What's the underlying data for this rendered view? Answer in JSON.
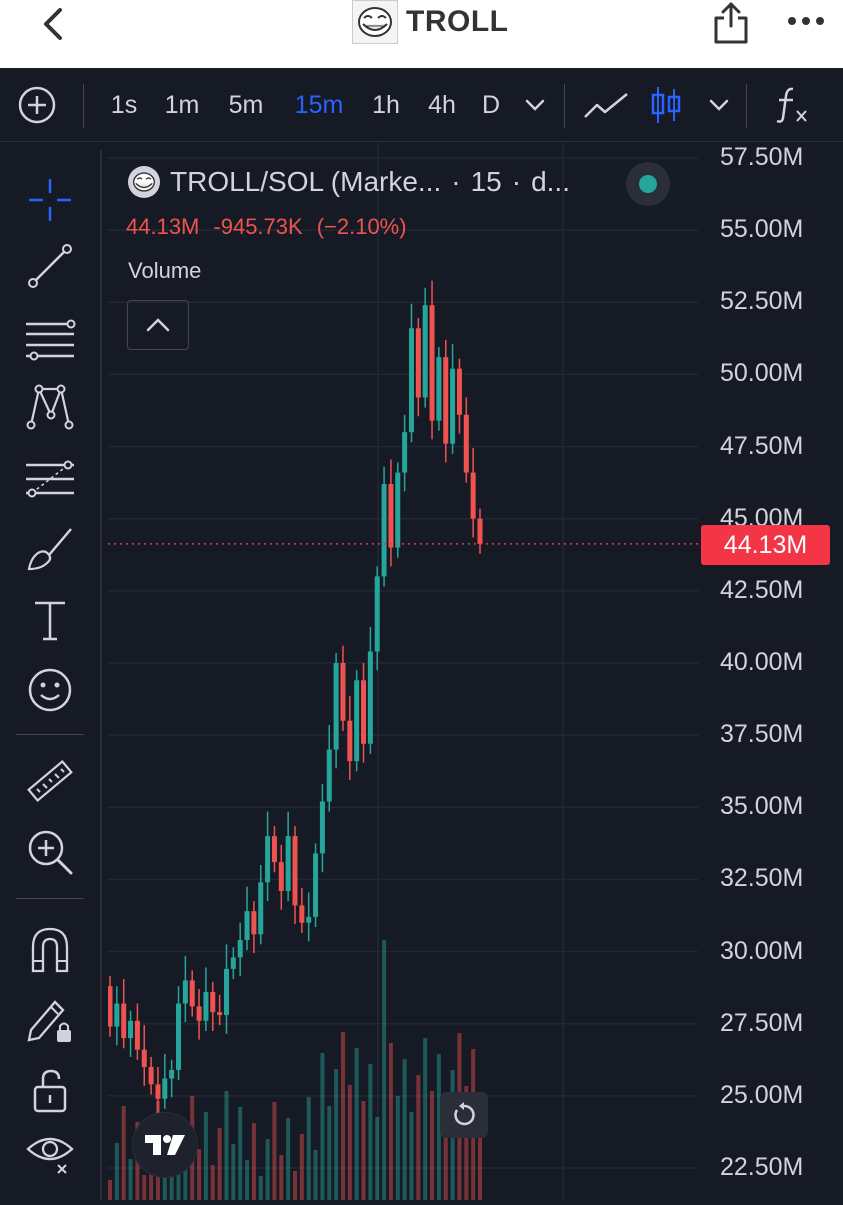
{
  "header": {
    "title": "TROLL"
  },
  "toolbar": {
    "intervals": [
      "1s",
      "1m",
      "5m",
      "15m",
      "1h",
      "4h",
      "D"
    ],
    "active_interval": "15m"
  },
  "legend": {
    "symbol": "TROLL/SOL (Marke...",
    "interval": "15",
    "suffix": "d...",
    "price": "44.13M",
    "change": "-945.73K",
    "change_pct": "(−2.10%)",
    "volume_label": "Volume"
  },
  "colors": {
    "up": "#26a69a",
    "down": "#ef5350",
    "accent": "#2962ff",
    "price_tag": "#f23645",
    "background": "#161a25"
  },
  "chart_data": {
    "type": "candlestick",
    "y_axis_labels": [
      "57.50M",
      "55.00M",
      "52.50M",
      "50.00M",
      "47.50M",
      "45.00M",
      "42.50M",
      "40.00M",
      "37.50M",
      "35.00M",
      "32.50M",
      "30.00M",
      "27.50M",
      "25.00M",
      "22.50M"
    ],
    "ylim": [
      22.5,
      57.5
    ],
    "current_price": 44.13,
    "current_price_label": "44.13M",
    "series_shape": [
      [
        28.8,
        27.4
      ],
      [
        27.4,
        28.2
      ],
      [
        28.2,
        27.0
      ],
      [
        27.0,
        27.6
      ],
      [
        27.6,
        26.6
      ],
      [
        26.6,
        26.0
      ],
      [
        26.0,
        25.4
      ],
      [
        25.4,
        24.9
      ],
      [
        24.9,
        25.6
      ],
      [
        25.6,
        25.9
      ],
      [
        25.9,
        28.2
      ],
      [
        28.2,
        29.0
      ],
      [
        29.0,
        28.1
      ],
      [
        28.1,
        27.6
      ],
      [
        27.6,
        28.6
      ],
      [
        28.6,
        27.9
      ],
      [
        27.9,
        27.8
      ],
      [
        27.8,
        29.4
      ],
      [
        29.4,
        29.8
      ],
      [
        29.8,
        30.4
      ],
      [
        30.4,
        31.4
      ],
      [
        31.4,
        30.6
      ],
      [
        30.6,
        32.4
      ],
      [
        32.4,
        34.0
      ],
      [
        34.0,
        33.1
      ],
      [
        33.1,
        32.1
      ],
      [
        32.1,
        34.0
      ],
      [
        34.0,
        31.6
      ],
      [
        31.6,
        31.0
      ],
      [
        31.0,
        31.2
      ],
      [
        31.2,
        33.4
      ],
      [
        33.4,
        35.2
      ],
      [
        35.2,
        37.0
      ],
      [
        37.0,
        40.0
      ],
      [
        40.0,
        38.0
      ],
      [
        38.0,
        36.6
      ],
      [
        36.6,
        39.4
      ],
      [
        39.4,
        37.2
      ],
      [
        37.2,
        40.4
      ],
      [
        40.4,
        43.0
      ],
      [
        43.0,
        46.2
      ],
      [
        46.2,
        44.0
      ],
      [
        44.0,
        46.6
      ],
      [
        46.6,
        48.0
      ],
      [
        48.0,
        51.6
      ],
      [
        51.6,
        49.2
      ],
      [
        49.2,
        52.4
      ],
      [
        52.4,
        48.4
      ],
      [
        48.4,
        50.6
      ],
      [
        50.6,
        47.6
      ],
      [
        47.6,
        50.2
      ],
      [
        50.2,
        48.6
      ],
      [
        48.6,
        46.6
      ],
      [
        46.6,
        45.0
      ],
      [
        45.0,
        44.13
      ]
    ]
  }
}
